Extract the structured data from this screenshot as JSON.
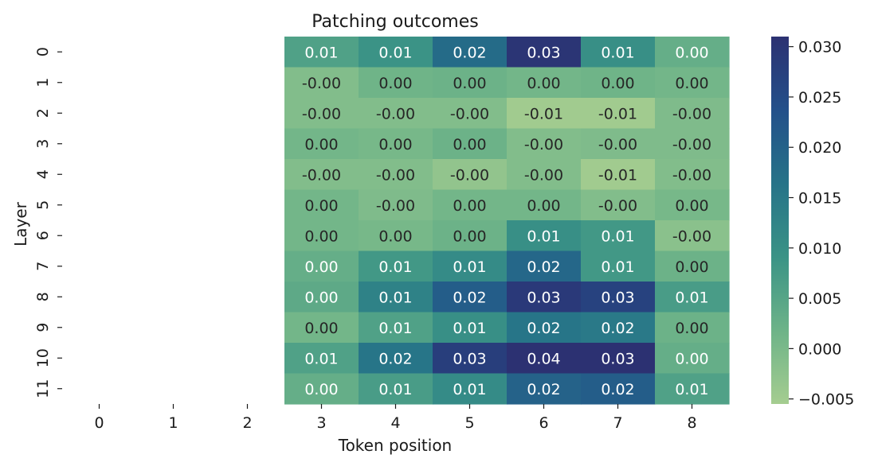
{
  "chart_data": {
    "type": "heatmap",
    "title": "Patching outcomes",
    "xlabel": "Token position",
    "ylabel": "Layer",
    "x_categories": [
      "0",
      "1",
      "2",
      "3",
      "4",
      "5",
      "6",
      "7",
      "8"
    ],
    "y_categories": [
      "0",
      "1",
      "2",
      "3",
      "4",
      "5",
      "6",
      "7",
      "8",
      "9",
      "10",
      "11"
    ],
    "values": [
      [
        null,
        null,
        null,
        0.006,
        0.009,
        0.018,
        0.03,
        0.01,
        0.003
      ],
      [
        null,
        null,
        null,
        -0.001,
        0.0015,
        0.002,
        0.001,
        0.0015,
        0.001
      ],
      [
        null,
        null,
        null,
        -0.001,
        -0.001,
        -0.001,
        -0.005,
        -0.005,
        -0.0005
      ],
      [
        null,
        null,
        null,
        0.001,
        0.0005,
        0.002,
        -0.001,
        -0.0005,
        -0.0005
      ],
      [
        null,
        null,
        null,
        -0.001,
        -0.001,
        -0.003,
        -0.001,
        -0.005,
        -0.001
      ],
      [
        null,
        null,
        null,
        0.001,
        -0.0005,
        0.001,
        0.001,
        -0.001,
        0.0005
      ],
      [
        null,
        null,
        null,
        0.001,
        0.0005,
        0.002,
        0.01,
        0.008,
        -0.002
      ],
      [
        null,
        null,
        null,
        0.003,
        0.008,
        0.011,
        0.019,
        0.008,
        0.002
      ],
      [
        null,
        null,
        null,
        0.004,
        0.013,
        0.021,
        0.029,
        0.027,
        0.007
      ],
      [
        null,
        null,
        null,
        0.001,
        0.006,
        0.01,
        0.016,
        0.015,
        0.002
      ],
      [
        null,
        null,
        null,
        0.006,
        0.016,
        0.028,
        0.036,
        0.031,
        0.003
      ],
      [
        null,
        null,
        null,
        0.003,
        0.007,
        0.011,
        0.02,
        0.021,
        0.006
      ]
    ],
    "cell_labels": [
      [
        "",
        "",
        "",
        "0.01",
        "0.01",
        "0.02",
        "0.03",
        "0.01",
        "0.00"
      ],
      [
        "",
        "",
        "",
        "-0.00",
        "0.00",
        "0.00",
        "0.00",
        "0.00",
        "0.00"
      ],
      [
        "",
        "",
        "",
        "-0.00",
        "-0.00",
        "-0.00",
        "-0.01",
        "-0.01",
        "-0.00"
      ],
      [
        "",
        "",
        "",
        "0.00",
        "0.00",
        "0.00",
        "-0.00",
        "-0.00",
        "-0.00"
      ],
      [
        "",
        "",
        "",
        "-0.00",
        "-0.00",
        "-0.00",
        "-0.00",
        "-0.01",
        "-0.00"
      ],
      [
        "",
        "",
        "",
        "0.00",
        "-0.00",
        "0.00",
        "0.00",
        "-0.00",
        "0.00"
      ],
      [
        "",
        "",
        "",
        "0.00",
        "0.00",
        "0.00",
        "0.01",
        "0.01",
        "-0.00"
      ],
      [
        "",
        "",
        "",
        "0.00",
        "0.01",
        "0.01",
        "0.02",
        "0.01",
        "0.00"
      ],
      [
        "",
        "",
        "",
        "0.00",
        "0.01",
        "0.02",
        "0.03",
        "0.03",
        "0.01"
      ],
      [
        "",
        "",
        "",
        "0.00",
        "0.01",
        "0.01",
        "0.02",
        "0.02",
        "0.00"
      ],
      [
        "",
        "",
        "",
        "0.01",
        "0.02",
        "0.03",
        "0.04",
        "0.03",
        "0.00"
      ],
      [
        "",
        "",
        "",
        "0.00",
        "0.01",
        "0.01",
        "0.02",
        "0.02",
        "0.01"
      ]
    ],
    "colorbar": {
      "min": -0.0055,
      "max": 0.031,
      "ticks": [
        -0.005,
        0.0,
        0.005,
        0.01,
        0.015,
        0.02,
        0.025,
        0.03
      ],
      "tick_labels": [
        "−0.005",
        "0.000",
        "0.005",
        "0.010",
        "0.015",
        "0.020",
        "0.025",
        "0.030"
      ],
      "colormap": "crest",
      "colors": [
        "#a5cd90",
        "#6db388",
        "#3a9386",
        "#267388",
        "#23508a",
        "#2c3172"
      ]
    },
    "grid": false,
    "legend": "colorbar-right"
  }
}
